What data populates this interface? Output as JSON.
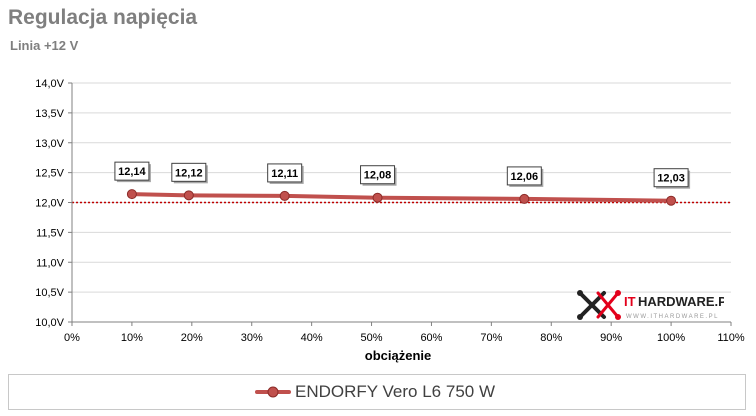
{
  "header": {
    "title": "Regulacja napięcia",
    "subtitle": "Linia +12 V"
  },
  "chart_data": {
    "type": "line",
    "title": "Regulacja napięcia",
    "subtitle": "Linia +12 V",
    "xlabel": "obciążenie",
    "ylabel": "",
    "xlim": [
      0,
      110
    ],
    "ylim": [
      10.0,
      14.0
    ],
    "x_ticks": [
      "0%",
      "10%",
      "20%",
      "30%",
      "40%",
      "50%",
      "60%",
      "70%",
      "80%",
      "90%",
      "100%",
      "110%"
    ],
    "y_ticks": [
      "10,0V",
      "10,5V",
      "11,0V",
      "11,5V",
      "12,0V",
      "12,5V",
      "13,0V",
      "13,5V",
      "14,0V"
    ],
    "grid": true,
    "reference_line": 12.0,
    "series": [
      {
        "name": "ENDORFY Vero L6 750 W",
        "color": "#c0504d",
        "x": [
          10,
          19.5,
          35.5,
          51,
          75.5,
          100
        ],
        "y": [
          12.14,
          12.12,
          12.11,
          12.08,
          12.06,
          12.03
        ],
        "labels": [
          "12,14",
          "12,12",
          "12,11",
          "12,08",
          "12,06",
          "12,03"
        ]
      }
    ],
    "legend_position": "bottom"
  },
  "logo": {
    "text": "ITHARDWARE.PL",
    "tagline": "www.ithardware.pl",
    "icon": "ithardware-logo-icon",
    "accent": "#e3001b"
  },
  "legend": {
    "label": "ENDORFY Vero L6 750 W",
    "color": "#c0504d"
  },
  "colors": {
    "grid": "#d9d9d9",
    "reference": "#c00000",
    "text_gray": "#7f7f7f"
  }
}
